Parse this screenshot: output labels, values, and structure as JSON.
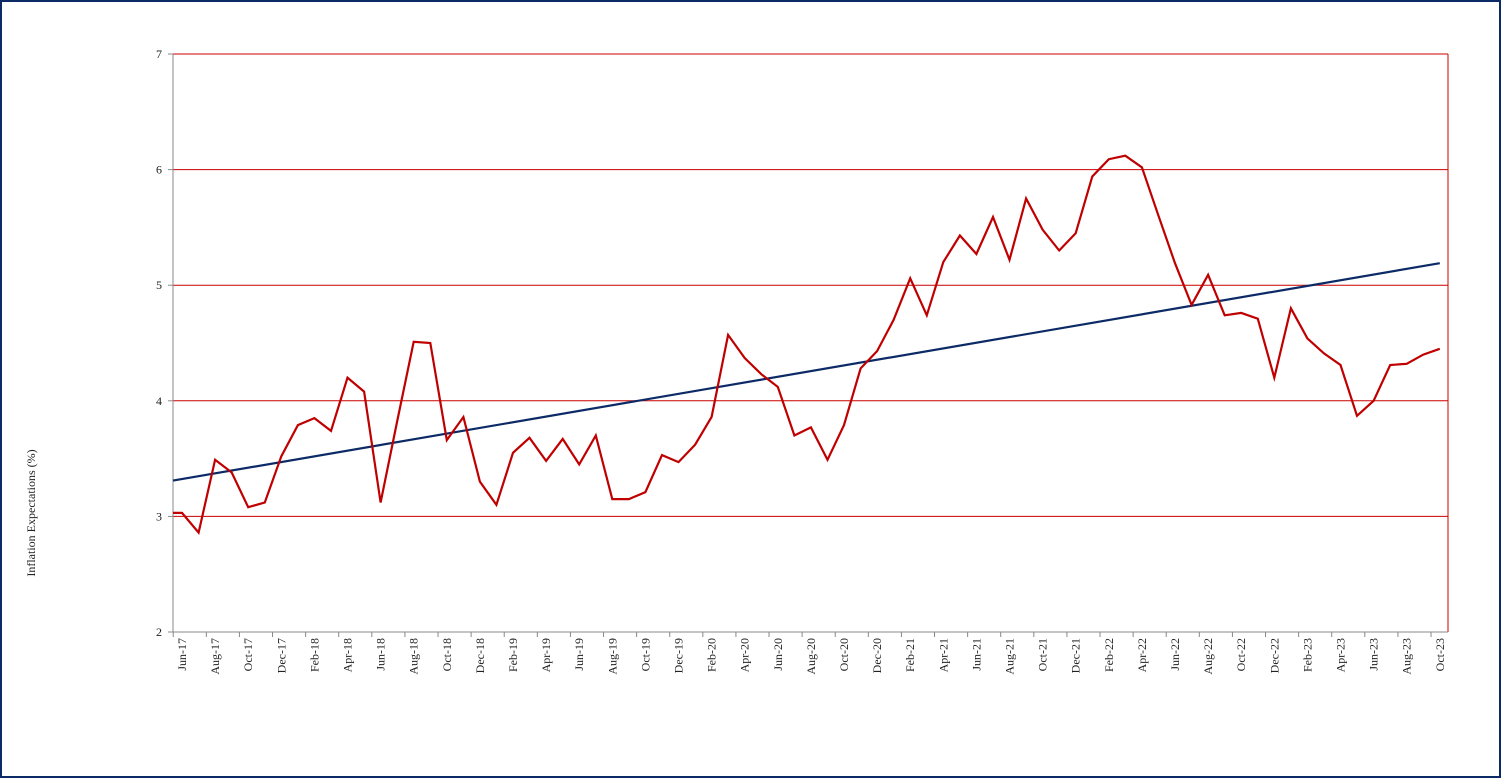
{
  "chart_data": {
    "type": "line",
    "title": "",
    "xlabel": "",
    "ylabel": "Inflation Expectations (%)",
    "ylim": [
      2,
      7
    ],
    "yticks": [
      2,
      3,
      4,
      5,
      6,
      7
    ],
    "grid": true,
    "grid_color": "#cc0000",
    "legend": null,
    "xtick_labels": [
      "Jun-17",
      "Aug-17",
      "Oct-17",
      "Dec-17",
      "Feb-18",
      "Apr-18",
      "Jun-18",
      "Aug-18",
      "Oct-18",
      "Dec-18",
      "Feb-19",
      "Apr-19",
      "Jun-19",
      "Aug-19",
      "Oct-19",
      "Dec-19",
      "Feb-20",
      "Apr-20",
      "Jun-20",
      "Aug-20",
      "Oct-20",
      "Dec-20",
      "Feb-21",
      "Apr-21",
      "Jun-21",
      "Aug-21",
      "Oct-21",
      "Dec-21",
      "Feb-22",
      "Apr-22",
      "Jun-22",
      "Aug-22",
      "Oct-22",
      "Dec-22",
      "Feb-23",
      "Apr-23",
      "Jun-23",
      "Aug-23",
      "Oct-23"
    ],
    "x": [
      "Jun-17",
      "Jul-17",
      "Aug-17",
      "Sep-17",
      "Oct-17",
      "Nov-17",
      "Dec-17",
      "Jan-18",
      "Feb-18",
      "Mar-18",
      "Apr-18",
      "May-18",
      "Jun-18",
      "Jul-18",
      "Aug-18",
      "Sep-18",
      "Oct-18",
      "Nov-18",
      "Dec-18",
      "Jan-19",
      "Feb-19",
      "Mar-19",
      "Apr-19",
      "May-19",
      "Jun-19",
      "Jul-19",
      "Aug-19",
      "Sep-19",
      "Oct-19",
      "Nov-19",
      "Dec-19",
      "Jan-20",
      "Feb-20",
      "Mar-20",
      "Apr-20",
      "May-20",
      "Jun-20",
      "Jul-20",
      "Aug-20",
      "Sep-20",
      "Oct-20",
      "Nov-20",
      "Dec-20",
      "Jan-21",
      "Feb-21",
      "Mar-21",
      "Apr-21",
      "May-21",
      "Jun-21",
      "Jul-21",
      "Aug-21",
      "Sep-21",
      "Oct-21",
      "Nov-21",
      "Dec-21",
      "Jan-22",
      "Feb-22",
      "Mar-22",
      "Apr-22",
      "May-22",
      "Jun-22",
      "Jul-22",
      "Aug-22",
      "Sep-22",
      "Oct-22",
      "Nov-22",
      "Dec-22",
      "Jan-23",
      "Feb-23",
      "Mar-23",
      "Apr-23",
      "May-23",
      "Jun-23",
      "Jul-23",
      "Aug-23",
      "Sep-23",
      "Oct-23"
    ],
    "series": [
      {
        "name": "Inflation Expectations",
        "color": "#c00000",
        "leading_value": 3.03,
        "values": [
          3.03,
          2.86,
          3.49,
          3.38,
          3.08,
          3.12,
          3.52,
          3.79,
          3.85,
          3.74,
          4.2,
          4.08,
          3.12,
          3.82,
          4.51,
          4.5,
          3.66,
          3.86,
          3.3,
          3.1,
          3.55,
          3.68,
          3.48,
          3.67,
          3.45,
          3.7,
          3.15,
          3.15,
          3.21,
          3.53,
          3.47,
          3.62,
          3.86,
          4.57,
          4.37,
          4.23,
          4.12,
          3.7,
          3.77,
          3.49,
          3.79,
          4.28,
          4.43,
          4.7,
          5.06,
          4.74,
          5.2,
          5.43,
          5.27,
          5.59,
          5.22,
          5.75,
          5.48,
          5.3,
          5.45,
          5.94,
          6.09,
          6.12,
          6.02,
          5.6,
          5.19,
          4.83,
          5.09,
          4.74,
          4.76,
          4.71,
          4.2,
          4.8,
          4.54,
          4.41,
          4.31,
          3.87,
          4.0,
          4.31,
          4.32,
          4.4,
          4.45
        ]
      },
      {
        "name": "Linear trend",
        "color": "#0b2a66",
        "type": "trendline",
        "start": 3.31,
        "end": 5.19
      }
    ]
  }
}
